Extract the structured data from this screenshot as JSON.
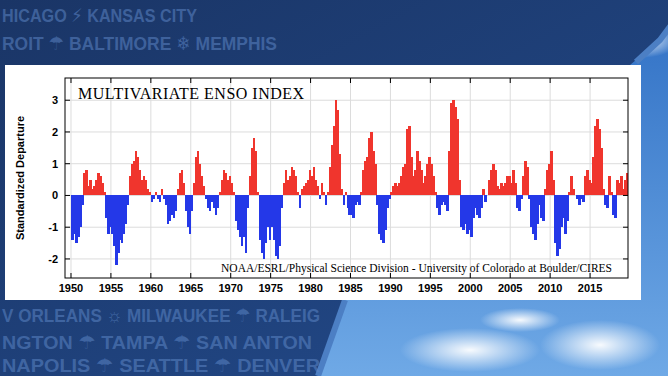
{
  "chart_data": {
    "type": "area",
    "title": "MULTIVARIATE ENSO INDEX",
    "ylabel": "Standardized Departure",
    "annotation": "NOAA/ESRL/Physical Science Division - University of Colorado at Boulder/CIRES",
    "xlim": [
      1949.25,
      2019.75
    ],
    "xticks": [
      1950,
      1955,
      1960,
      1965,
      1970,
      1975,
      1980,
      1985,
      1990,
      1995,
      2000,
      2005,
      2010,
      2015
    ],
    "ylim": [
      -2.6,
      3.7
    ],
    "yticks": [
      -2,
      -1,
      0,
      1,
      2,
      3
    ],
    "grid": true,
    "x": [
      1950,
      1950.25,
      1950.5,
      1950.75,
      1951,
      1951.25,
      1951.5,
      1951.75,
      1952,
      1952.25,
      1952.5,
      1952.75,
      1953,
      1953.25,
      1953.5,
      1953.75,
      1954,
      1954.25,
      1954.5,
      1954.75,
      1955,
      1955.25,
      1955.5,
      1955.75,
      1956,
      1956.25,
      1956.5,
      1956.75,
      1957,
      1957.25,
      1957.5,
      1957.75,
      1958,
      1958.25,
      1958.5,
      1958.75,
      1959,
      1959.25,
      1959.5,
      1959.75,
      1960,
      1960.25,
      1960.5,
      1960.75,
      1961,
      1961.25,
      1961.5,
      1961.75,
      1962,
      1962.25,
      1962.5,
      1962.75,
      1963,
      1963.25,
      1963.5,
      1963.75,
      1964,
      1964.25,
      1964.5,
      1964.75,
      1965,
      1965.25,
      1965.5,
      1965.75,
      1966,
      1966.25,
      1966.5,
      1966.75,
      1967,
      1967.25,
      1967.5,
      1967.75,
      1968,
      1968.25,
      1968.5,
      1968.75,
      1969,
      1969.25,
      1969.5,
      1969.75,
      1970,
      1970.25,
      1970.5,
      1970.75,
      1971,
      1971.25,
      1971.5,
      1971.75,
      1972,
      1972.25,
      1972.5,
      1972.75,
      1973,
      1973.25,
      1973.5,
      1973.75,
      1974,
      1974.25,
      1974.5,
      1974.75,
      1975,
      1975.25,
      1975.5,
      1975.75,
      1976,
      1976.25,
      1976.5,
      1976.75,
      1977,
      1977.25,
      1977.5,
      1977.75,
      1978,
      1978.25,
      1978.5,
      1978.75,
      1979,
      1979.25,
      1979.5,
      1979.75,
      1980,
      1980.25,
      1980.5,
      1980.75,
      1981,
      1981.25,
      1981.5,
      1981.75,
      1982,
      1982.25,
      1982.5,
      1982.75,
      1983,
      1983.25,
      1983.5,
      1983.75,
      1984,
      1984.25,
      1984.5,
      1984.75,
      1985,
      1985.25,
      1985.5,
      1985.75,
      1986,
      1986.25,
      1986.5,
      1986.75,
      1987,
      1987.25,
      1987.5,
      1987.75,
      1988,
      1988.25,
      1988.5,
      1988.75,
      1989,
      1989.25,
      1989.5,
      1989.75,
      1990,
      1990.25,
      1990.5,
      1990.75,
      1991,
      1991.25,
      1991.5,
      1991.75,
      1992,
      1992.25,
      1992.5,
      1992.75,
      1993,
      1993.25,
      1993.5,
      1993.75,
      1994,
      1994.25,
      1994.5,
      1994.75,
      1995,
      1995.25,
      1995.5,
      1995.75,
      1996,
      1996.25,
      1996.5,
      1996.75,
      1997,
      1997.25,
      1997.5,
      1997.75,
      1998,
      1998.25,
      1998.5,
      1998.75,
      1999,
      1999.25,
      1999.5,
      1999.75,
      2000,
      2000.25,
      2000.5,
      2000.75,
      2001,
      2001.25,
      2001.5,
      2001.75,
      2002,
      2002.25,
      2002.5,
      2002.75,
      2003,
      2003.25,
      2003.5,
      2003.75,
      2004,
      2004.25,
      2004.5,
      2004.75,
      2005,
      2005.25,
      2005.5,
      2005.75,
      2006,
      2006.25,
      2006.5,
      2006.75,
      2007,
      2007.25,
      2007.5,
      2007.75,
      2008,
      2008.25,
      2008.5,
      2008.75,
      2009,
      2009.25,
      2009.5,
      2009.75,
      2010,
      2010.25,
      2010.5,
      2010.75,
      2011,
      2011.25,
      2011.5,
      2011.75,
      2012,
      2012.25,
      2012.5,
      2012.75,
      2013,
      2013.25,
      2013.5,
      2013.75,
      2014,
      2014.25,
      2014.5,
      2014.75,
      2015,
      2015.25,
      2015.5,
      2015.75,
      2016,
      2016.25,
      2016.5,
      2016.75,
      2017,
      2017.25,
      2017.5,
      2017.75,
      2018,
      2018.25,
      2018.5,
      2018.75,
      2019,
      2019.25,
      2019.5
    ],
    "series": [
      {
        "color": "#f0352d",
        "values": [
          null,
          null,
          null,
          null,
          null,
          null,
          0.7,
          0.8,
          0.3,
          0.5,
          0.2,
          0.3,
          0.5,
          0.7,
          0.6,
          0.4,
          0.1,
          null,
          null,
          null,
          null,
          null,
          null,
          null,
          null,
          null,
          null,
          null,
          null,
          0.6,
          1.0,
          1.1,
          1.4,
          1.2,
          0.8,
          0.5,
          0.6,
          0.5,
          0.2,
          0.1,
          null,
          null,
          0.1,
          null,
          null,
          0.2,
          null,
          null,
          null,
          null,
          null,
          null,
          null,
          0.2,
          0.7,
          0.8,
          0.4,
          null,
          null,
          null,
          null,
          0.4,
          1.2,
          1.4,
          1.0,
          0.6,
          0.3,
          null,
          null,
          null,
          null,
          null,
          null,
          null,
          0.1,
          0.5,
          0.8,
          0.7,
          0.5,
          0.6,
          0.4,
          0.1,
          null,
          null,
          null,
          null,
          null,
          null,
          null,
          0.6,
          1.5,
          1.8,
          1.4,
          0.1,
          null,
          null,
          null,
          null,
          null,
          null,
          null,
          null,
          null,
          null,
          null,
          null,
          0.4,
          0.8,
          0.5,
          0.6,
          0.9,
          0.8,
          0.6,
          0.1,
          null,
          0.2,
          0.3,
          0.4,
          0.5,
          0.8,
          0.6,
          0.9,
          0.5,
          0.3,
          null,
          0.4,
          0.1,
          null,
          0.1,
          0.9,
          1.6,
          2.2,
          3.0,
          2.7,
          1.3,
          0.2,
          null,
          0.1,
          null,
          null,
          null,
          null,
          null,
          null,
          null,
          0.1,
          0.8,
          1.1,
          1.2,
          1.8,
          2.0,
          1.4,
          1.0,
          null,
          null,
          null,
          null,
          null,
          null,
          null,
          0.1,
          0.3,
          0.4,
          0.3,
          0.4,
          0.6,
          0.9,
          1.0,
          2.1,
          2.2,
          1.2,
          0.6,
          0.8,
          1.4,
          1.1,
          0.8,
          0.4,
          0.6,
          1.0,
          1.2,
          1.0,
          0.6,
          0.1,
          null,
          null,
          null,
          null,
          null,
          null,
          1.4,
          2.9,
          3.0,
          2.8,
          2.4,
          0.5,
          null,
          null,
          null,
          null,
          null,
          null,
          null,
          null,
          null,
          null,
          null,
          0.2,
          null,
          0,
          0.5,
          0.8,
          1.0,
          0.8,
          0.3,
          0.2,
          0.4,
          0.3,
          0.4,
          0.6,
          0.6,
          0.4,
          0.8,
          0.4,
          null,
          null,
          null,
          0.6,
          1.1,
          0.9,
          null,
          null,
          null,
          null,
          null,
          null,
          null,
          null,
          0.2,
          0.8,
          1.0,
          1.4,
          0.5,
          null,
          null,
          null,
          null,
          null,
          null,
          null,
          0.1,
          0.6,
          0.2,
          0,
          null,
          null,
          null,
          null,
          0.6,
          0.8,
          0.5,
          0.4,
          1.2,
          2.2,
          2.4,
          2.1,
          1.5,
          0.2,
          null,
          null,
          0.6,
          0.1,
          null,
          null,
          0.5,
          0.4,
          0.6,
          0.2,
          0.5,
          0.7
        ]
      },
      {
        "color": "#2438e8",
        "values": [
          -1.4,
          -1.2,
          -1.5,
          -1.3,
          -1.0,
          -0.3,
          null,
          null,
          null,
          null,
          null,
          null,
          null,
          null,
          null,
          null,
          null,
          -0.7,
          -1.2,
          -1.0,
          -1.2,
          -1.6,
          -2.2,
          -1.8,
          -1.4,
          -1.5,
          -1.2,
          -0.9,
          -0.3,
          null,
          null,
          null,
          null,
          null,
          null,
          null,
          null,
          null,
          null,
          null,
          -0.2,
          -0.1,
          null,
          -0.1,
          -0.2,
          null,
          -0.1,
          -0.3,
          -0.9,
          -0.8,
          -0.6,
          -0.7,
          -0.5,
          null,
          null,
          null,
          null,
          -0.5,
          -1.0,
          -1.2,
          -0.5,
          null,
          null,
          null,
          null,
          null,
          null,
          -0.1,
          -0.4,
          -0.5,
          -0.2,
          -0.4,
          -0.6,
          -0.4,
          null,
          null,
          null,
          null,
          null,
          null,
          null,
          null,
          -0.8,
          -1.1,
          -1.3,
          -1.6,
          -1.3,
          -1.8,
          -0.4,
          null,
          null,
          null,
          null,
          null,
          -1.4,
          -1.8,
          -2.0,
          -1.5,
          -1.0,
          -1.4,
          -1.0,
          -1.4,
          -1.9,
          -2.0,
          -1.6,
          -0.4,
          null,
          null,
          null,
          null,
          null,
          null,
          null,
          null,
          -0.4,
          null,
          null,
          null,
          null,
          null,
          null,
          null,
          null,
          null,
          -0.1,
          null,
          null,
          -0.3,
          null,
          null,
          null,
          null,
          null,
          null,
          null,
          null,
          -0.3,
          null,
          -0.4,
          -0.6,
          -0.6,
          -0.7,
          -0.3,
          -0.2,
          -0.3,
          null,
          null,
          null,
          null,
          null,
          null,
          null,
          null,
          -0.3,
          -1.2,
          -1.4,
          -1.5,
          -1.1,
          -0.4,
          -0.1,
          null,
          null,
          null,
          null,
          null,
          null,
          null,
          null,
          null,
          null,
          null,
          null,
          null,
          null,
          null,
          null,
          null,
          null,
          null,
          null,
          null,
          null,
          null,
          -0.4,
          -0.6,
          -0.3,
          -0.2,
          -0.3,
          -0.5,
          null,
          null,
          null,
          null,
          null,
          null,
          -1.0,
          -1.1,
          -0.9,
          -1.2,
          -1.1,
          -1.3,
          -0.7,
          -0.4,
          -0.6,
          -0.7,
          -0.4,
          null,
          -0.2,
          null,
          null,
          null,
          null,
          null,
          null,
          null,
          null,
          null,
          null,
          null,
          null,
          null,
          null,
          null,
          -0.4,
          -0.5,
          -0.1,
          null,
          null,
          null,
          -0.1,
          -1.0,
          -1.2,
          -1.4,
          -0.9,
          -0.3,
          -0.7,
          -0.8,
          null,
          null,
          null,
          null,
          null,
          -1.5,
          -1.9,
          -1.7,
          -1.0,
          -0.7,
          -1.2,
          -0.8,
          null,
          null,
          null,
          null,
          -0.1,
          -0.3,
          -0.1,
          -0.2,
          null,
          null,
          null,
          null,
          null,
          null,
          null,
          null,
          null,
          null,
          -0.3,
          -0.4,
          null,
          null,
          -0.6,
          -0.7,
          null,
          null,
          null,
          null,
          null,
          null
        ]
      }
    ]
  },
  "background_text": [
    "HICAGO ⚡ KANSAS CITY",
    "ROIT ☂ BALTIMORE ❄ MEMPHIS",
    "V ORLEANS ☼ MILWAUKEE ☂ RALEIG",
    "NGTON ☂ TAMPA ☂ SAN ANTON",
    "NAPOLIS ☂ SEATTLE ☂ DENVER"
  ]
}
